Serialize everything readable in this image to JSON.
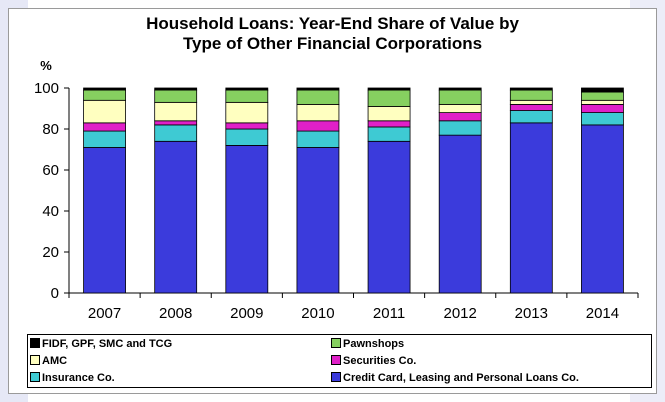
{
  "chart_data": {
    "type": "bar",
    "stacked": true,
    "title": [
      "Household Loans: Year-End Share of Value by",
      "Type of Other Financial Corporations"
    ],
    "ylabel": "%",
    "xlabel": "",
    "ylim": [
      0,
      100
    ],
    "yticks": [
      0,
      20,
      40,
      60,
      80,
      100
    ],
    "grid": false,
    "legend_position": "bottom",
    "categories": [
      "2007",
      "2008",
      "2009",
      "2010",
      "2011",
      "2012",
      "2013",
      "2014"
    ],
    "series": [
      {
        "name": "Credit Card, Leasing and Personal Loans Co.",
        "color": "#3b3bdc",
        "values": [
          71,
          74,
          72,
          71,
          74,
          77,
          83,
          82
        ]
      },
      {
        "name": "Insurance Co.",
        "color": "#3ecad3",
        "values": [
          8,
          8,
          8,
          8,
          7,
          7,
          6,
          6
        ]
      },
      {
        "name": "Securities Co.",
        "color": "#e020c8",
        "values": [
          4,
          2,
          3,
          5,
          3,
          4,
          3,
          4
        ]
      },
      {
        "name": "AMC",
        "color": "#ffffc0",
        "values": [
          11,
          9,
          10,
          8,
          7,
          4,
          2,
          2
        ]
      },
      {
        "name": "Pawnshops",
        "color": "#86d060",
        "values": [
          5,
          6,
          6,
          7,
          8,
          7,
          5,
          4
        ]
      },
      {
        "name": "FIDF, GPF, SMC and TCG",
        "color": "#000000",
        "values": [
          1,
          1,
          1,
          1,
          1,
          1,
          1,
          2
        ]
      }
    ],
    "legend_order": [
      "FIDF, GPF, SMC and TCG",
      "Pawnshops",
      "AMC",
      "Securities Co.",
      "Insurance Co.",
      "Credit Card, Leasing and Personal Loans Co."
    ]
  },
  "decor_colors": {
    "left_shape": "#e6e8f6",
    "right_shape": "#ecedf8"
  }
}
